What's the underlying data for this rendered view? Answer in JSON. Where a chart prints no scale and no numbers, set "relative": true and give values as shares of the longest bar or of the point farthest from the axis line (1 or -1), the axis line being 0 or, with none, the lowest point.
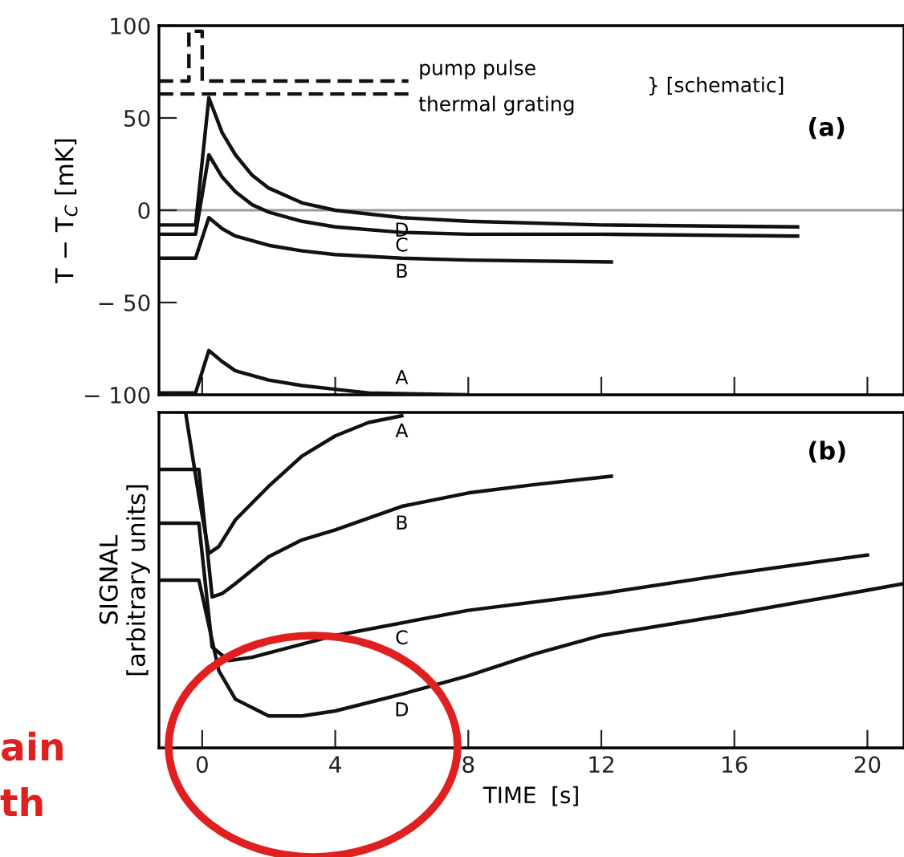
{
  "chart_data": [
    {
      "type": "line",
      "ylabel": "T − T$_{C}$ [mK]",
      "xlim": [
        -1.3,
        21.1
      ],
      "xticks": [
        {
          "value": 0,
          "label": null
        },
        {
          "value": 4,
          "label": null
        },
        {
          "value": 8,
          "label": null
        },
        {
          "value": 12,
          "label": null
        },
        {
          "value": 16,
          "label": null
        },
        {
          "value": 20,
          "label": null
        }
      ],
      "ylim": [
        -100,
        100
      ],
      "yticks": [
        {
          "value": -100,
          "label": "− 100"
        },
        {
          "value": -50,
          "label": "− 50"
        },
        0,
        50,
        100
      ],
      "tick_labels": "y",
      "grid": false,
      "legend": false,
      "ref_lines": [
        {
          "axis": "y",
          "value": 0,
          "color": "#999999"
        }
      ],
      "annotations": [
        "(a)",
        "} [schematic]"
      ],
      "series": [
        {
          "name": "pump pulse",
          "color": "#111111",
          "line_style": "dashed",
          "x": [
            -1.3,
            -0.4,
            -0.4,
            0,
            0,
            6.2
          ],
          "values": [
            70,
            70,
            97,
            97,
            70,
            70
          ]
        },
        {
          "name": "thermal grating",
          "color": "#111111",
          "line_style": "dashed",
          "x": [
            -1.3,
            6.2
          ],
          "values": [
            63,
            63
          ]
        },
        {
          "name": "D",
          "color": "#111111",
          "x": [
            -1.3,
            -0.2,
            0.2,
            0.6,
            1,
            1.5,
            2,
            3,
            4,
            6,
            8,
            12,
            17.9
          ],
          "values": [
            -8,
            -8,
            61,
            42,
            30,
            19,
            12,
            4,
            0,
            -4,
            -6,
            -8,
            -9
          ]
        },
        {
          "name": "C",
          "color": "#111111",
          "x": [
            -1.3,
            -0.2,
            0.2,
            0.6,
            1,
            1.5,
            2,
            3,
            4,
            6,
            8,
            12,
            17.9
          ],
          "values": [
            -13,
            -13,
            30,
            18,
            10,
            3,
            -1,
            -6,
            -9,
            -12,
            -13,
            -13,
            -14
          ]
        },
        {
          "name": "B",
          "color": "#111111",
          "x": [
            -1.3,
            -0.2,
            0.2,
            0.6,
            1,
            2,
            3,
            4,
            6,
            8,
            12.3
          ],
          "values": [
            -26,
            -26,
            -4,
            -10,
            -14,
            -19,
            -22,
            -24,
            -26,
            -27,
            -28
          ]
        },
        {
          "name": "A",
          "color": "#111111",
          "x": [
            -1.3,
            -0.2,
            0.2,
            0.6,
            1,
            2,
            3,
            4,
            5,
            7.9
          ],
          "values": [
            -99,
            -99,
            -76,
            -82,
            -87,
            -92,
            -95,
            -97,
            -99,
            -100
          ]
        }
      ]
    },
    {
      "type": "line",
      "ylabel": "SIGNAL\n[arbitrary units]",
      "xlabel": "TIME  [s]",
      "relative": true,
      "xlim": [
        -1.3,
        21.1
      ],
      "xticks": [
        0,
        4,
        8,
        12,
        16,
        20
      ],
      "tick_labels": "x",
      "grid": false,
      "legend": false,
      "annotations": [
        "(b)",
        "ain",
        "th"
      ],
      "series": [
        {
          "name": "A",
          "color": "#111111",
          "x": [
            -0.5,
            -0.1,
            0.2,
            0.5,
            1,
            2,
            3,
            4,
            5,
            6
          ],
          "values": [
            1.0,
            0.75,
            0.58,
            0.6,
            0.68,
            0.78,
            0.87,
            0.93,
            0.97,
            0.99
          ]
        },
        {
          "name": "B",
          "color": "#111111",
          "x": [
            -1.3,
            -0.1,
            0.3,
            0.6,
            1,
            2,
            3,
            4,
            6,
            8,
            10,
            12.3
          ],
          "values": [
            0.83,
            0.83,
            0.45,
            0.46,
            0.49,
            0.57,
            0.62,
            0.65,
            0.72,
            0.76,
            0.785,
            0.81
          ]
        },
        {
          "name": "C",
          "color": "#111111",
          "x": [
            -1.3,
            -0.1,
            0.3,
            0.8,
            1.5,
            4,
            8,
            12,
            16,
            20
          ],
          "values": [
            0.67,
            0.67,
            0.3,
            0.26,
            0.27,
            0.335,
            0.41,
            0.46,
            0.52,
            0.575
          ]
        },
        {
          "name": "D",
          "color": "#111111",
          "x": [
            -1.3,
            -0.1,
            0.5,
            1,
            2,
            3,
            4,
            6,
            8,
            10,
            12,
            16,
            20,
            21.1
          ],
          "values": [
            0.5,
            0.5,
            0.23,
            0.145,
            0.095,
            0.095,
            0.11,
            0.16,
            0.215,
            0.28,
            0.335,
            0.4,
            0.47,
            0.49
          ]
        }
      ]
    }
  ]
}
